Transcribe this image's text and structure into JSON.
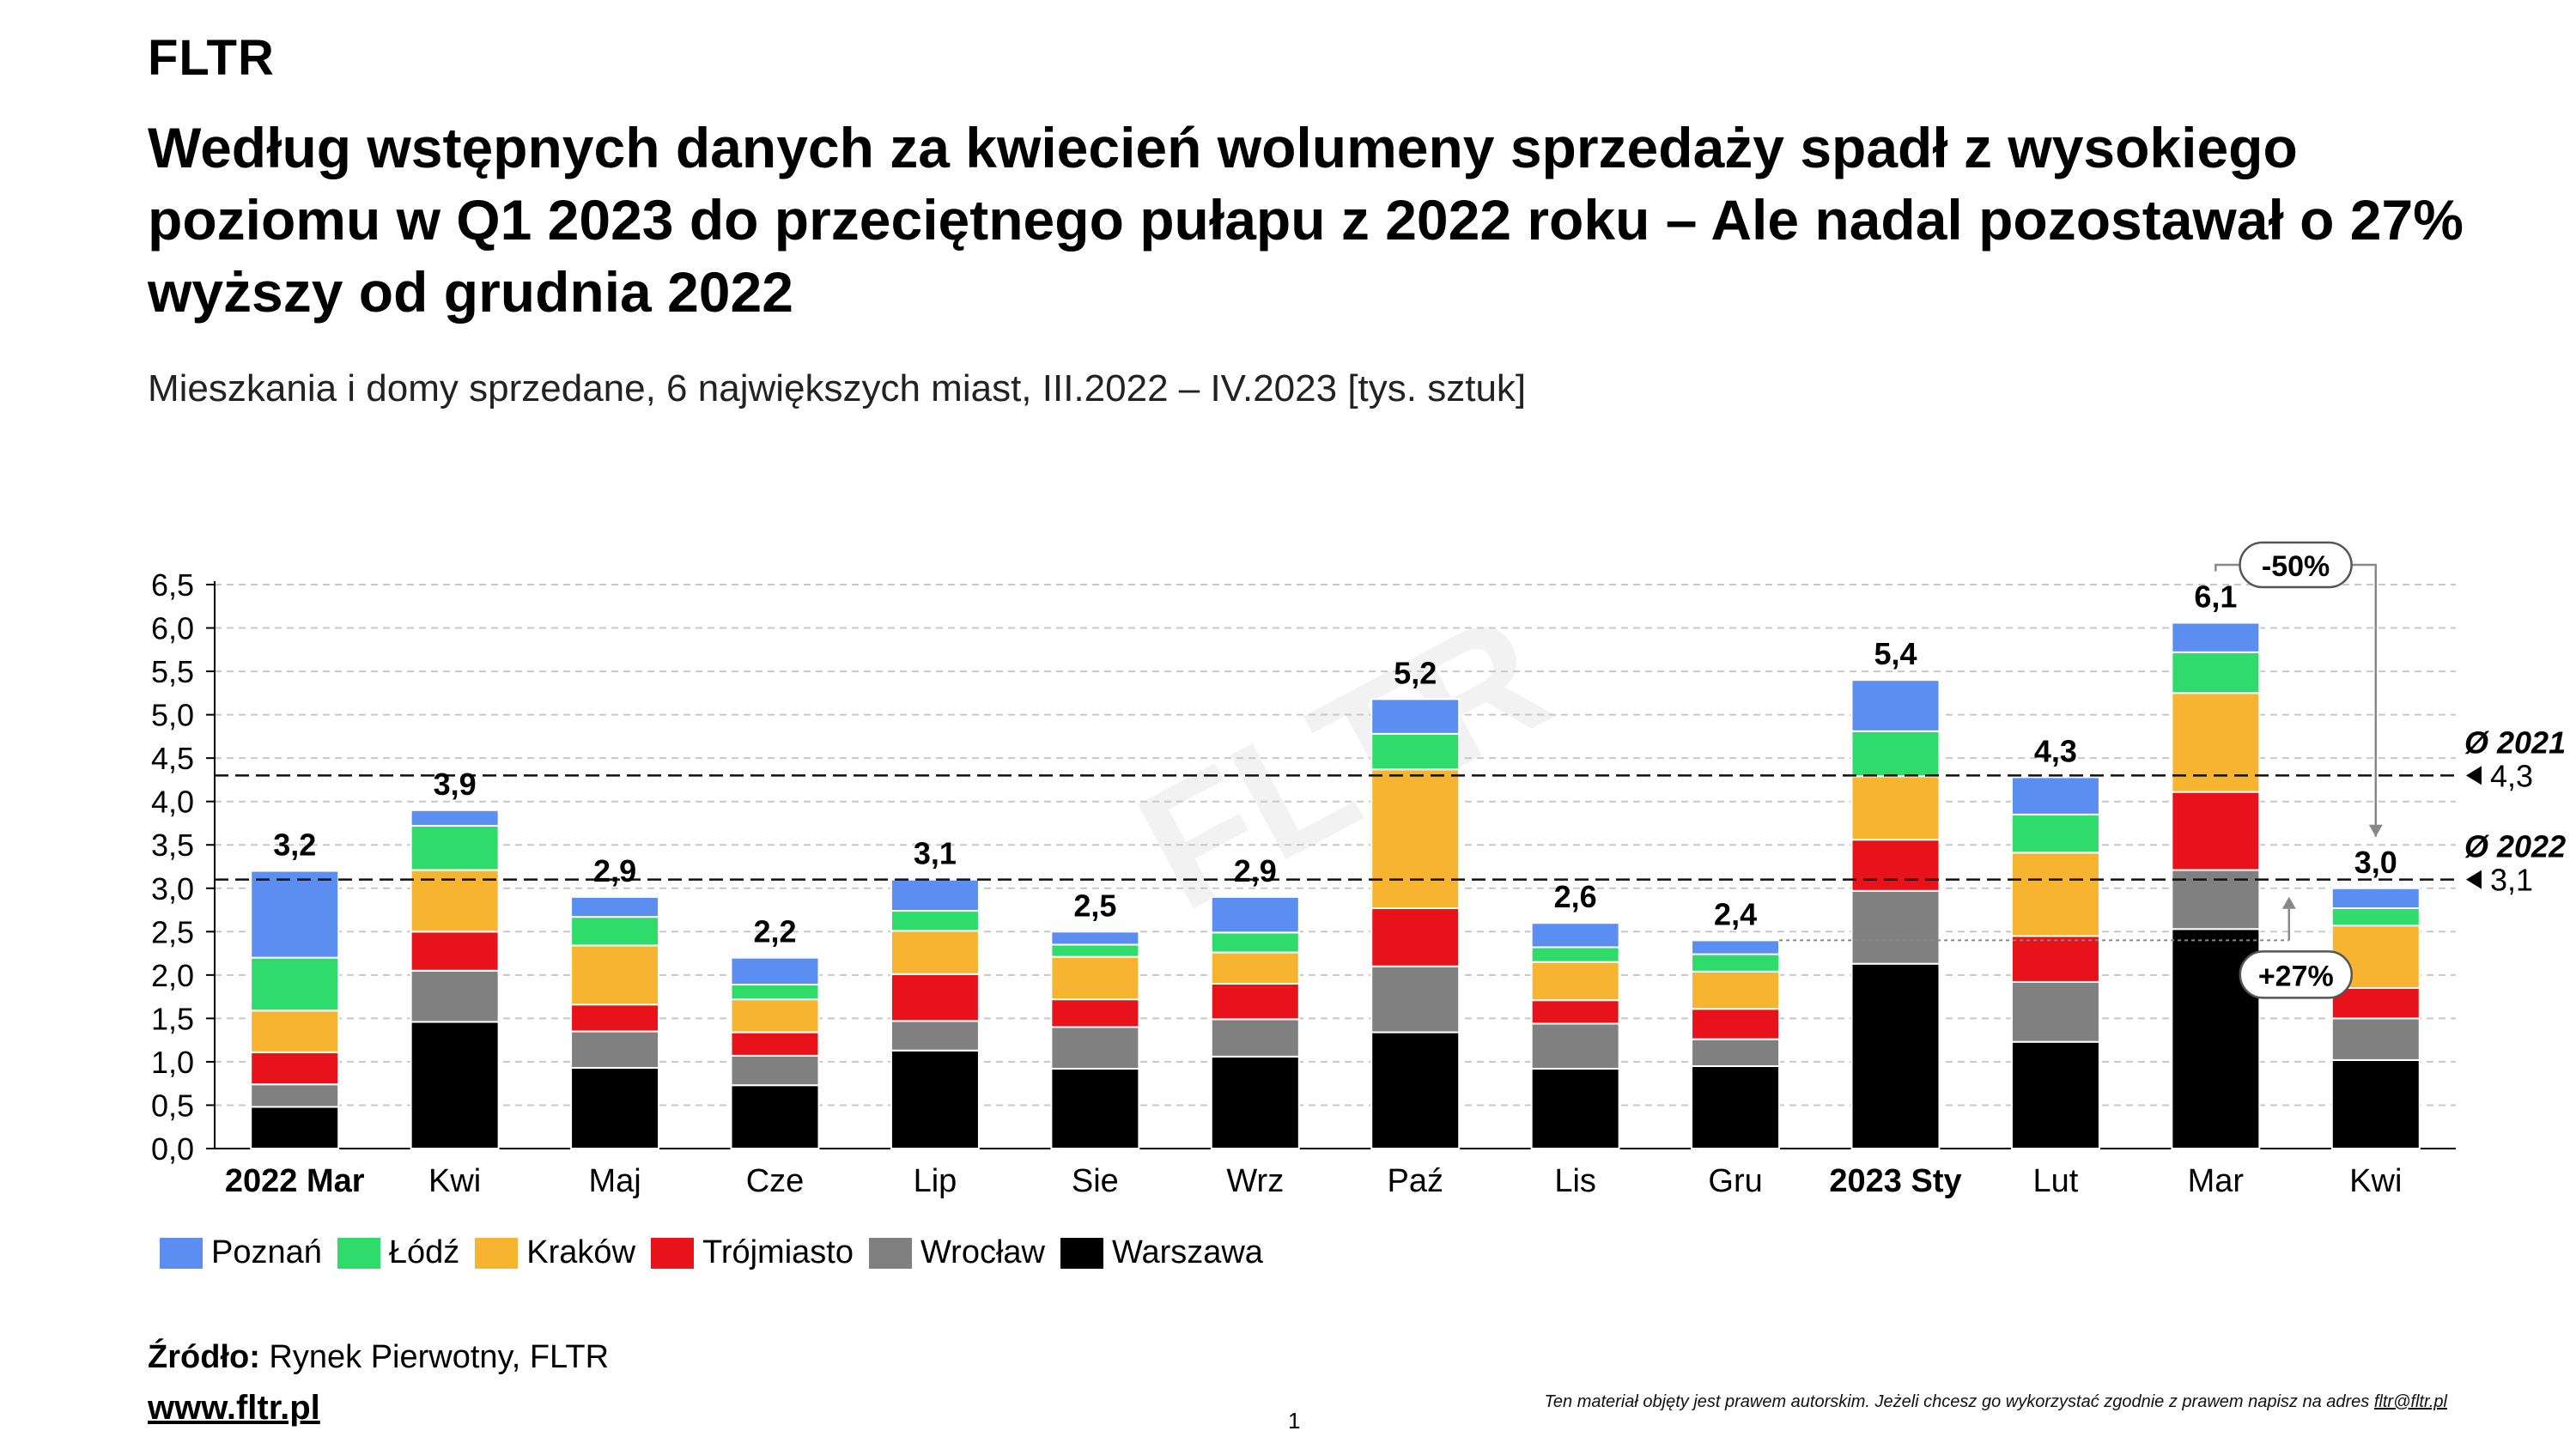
{
  "brand": "FLTR",
  "title": "Według wstępnych danych za kwiecień wolumeny sprzedaży spadł z wysokiego poziomu w Q1 2023 do przeciętnego pułapu z 2022 roku – Ale nadal pozostawał o 27% wyższy od grudnia 2022",
  "subtitle": "Mieszkania i domy sprzedane, 6 największych miast, III.2022 – IV.2023 [tys. sztuk]",
  "watermark": "FLTR",
  "source_label": "Źródło:",
  "source_text": "Rynek Pierwotny, FLTR",
  "website": "www.fltr.pl",
  "page_number": "1",
  "copyright_text": "Ten materiał objęty jest prawem autorskim. Jeżeli chcesz go wykorzystać zgodnie z prawem napisz na adres",
  "copyright_email": "fltr@fltr.pl",
  "chart_data": {
    "type": "bar",
    "stacked": true,
    "title": "Mieszkania i domy sprzedane, 6 największych miast, III.2022 – IV.2023 [tys. sztuk]",
    "ylim": [
      0,
      6.5
    ],
    "yticks": [
      "0,0",
      "0,5",
      "1,0",
      "1,5",
      "2,0",
      "2,5",
      "3,0",
      "3,5",
      "4,0",
      "4,5",
      "5,0",
      "5,5",
      "6,0",
      "6,5"
    ],
    "ytick_values": [
      0,
      0.5,
      1.0,
      1.5,
      2.0,
      2.5,
      3.0,
      3.5,
      4.0,
      4.5,
      5.0,
      5.5,
      6.0,
      6.5
    ],
    "grid": true,
    "legend_position": "bottom-left",
    "categories": [
      "2022 Mar",
      "Kwi",
      "Maj",
      "Cze",
      "Lip",
      "Sie",
      "Wrz",
      "Paź",
      "Lis",
      "Gru",
      "2023 Sty",
      "Lut",
      "Mar",
      "Kwi"
    ],
    "bold_categories": [
      0,
      10
    ],
    "totals": [
      "3,2",
      "3,9",
      "2,9",
      "2,2",
      "3,1",
      "2,5",
      "2,9",
      "5,2",
      "2,6",
      "2,4",
      "5,4",
      "4,3",
      "6,1",
      "3,0"
    ],
    "series": [
      {
        "name": "Warszawa",
        "color": "#000000",
        "values": [
          0.48,
          1.46,
          0.93,
          0.73,
          1.13,
          0.92,
          1.06,
          1.34,
          0.92,
          0.95,
          2.13,
          1.23,
          2.53,
          1.02
        ]
      },
      {
        "name": "Wrocław",
        "color": "#808080",
        "values": [
          0.26,
          0.59,
          0.42,
          0.34,
          0.34,
          0.48,
          0.43,
          0.76,
          0.52,
          0.31,
          0.84,
          0.69,
          0.68,
          0.48
        ]
      },
      {
        "name": "Trójmiasto",
        "color": "#e8131a",
        "values": [
          0.37,
          0.45,
          0.31,
          0.27,
          0.54,
          0.32,
          0.41,
          0.67,
          0.27,
          0.35,
          0.59,
          0.53,
          0.9,
          0.35
        ]
      },
      {
        "name": "Kraków",
        "color": "#f6b431",
        "values": [
          0.48,
          0.71,
          0.68,
          0.38,
          0.5,
          0.49,
          0.36,
          1.6,
          0.44,
          0.43,
          0.73,
          0.96,
          1.14,
          0.72
        ]
      },
      {
        "name": "Łódź",
        "color": "#2edb6b",
        "values": [
          0.61,
          0.51,
          0.33,
          0.17,
          0.23,
          0.14,
          0.23,
          0.41,
          0.17,
          0.2,
          0.52,
          0.44,
          0.47,
          0.2
        ]
      },
      {
        "name": "Poznań",
        "color": "#5b8ef0",
        "values": [
          1.0,
          0.18,
          0.23,
          0.31,
          0.36,
          0.15,
          0.41,
          0.4,
          0.28,
          0.16,
          0.59,
          0.43,
          0.34,
          0.23
        ]
      }
    ],
    "reference_lines": [
      {
        "name": "Ø 2021",
        "value": 4.3,
        "label": "4,3"
      },
      {
        "name": "Ø 2022",
        "value": 3.1,
        "label": "3,1"
      }
    ],
    "annotations": [
      {
        "text": "-50%",
        "from_category": 12,
        "to_category": 13
      },
      {
        "text": "+27%",
        "from_category": 9,
        "to_category": 13
      }
    ]
  }
}
